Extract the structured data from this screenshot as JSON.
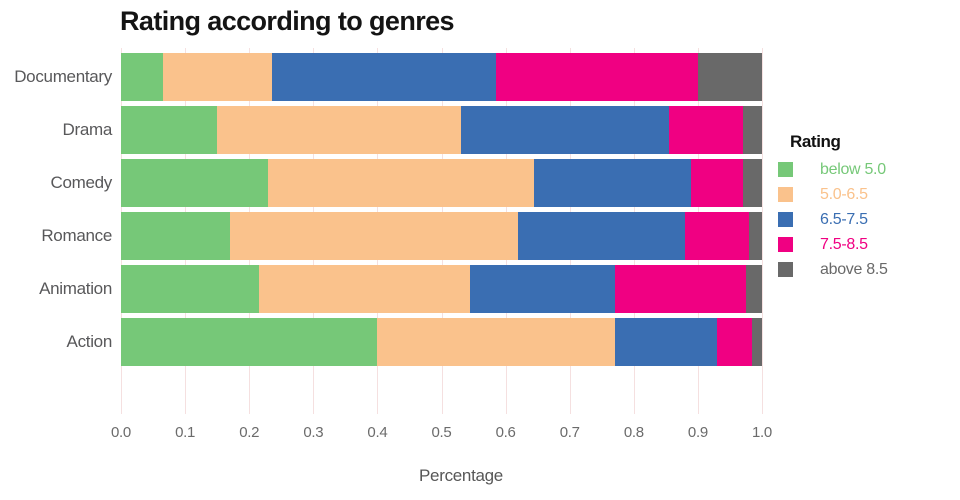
{
  "chart_data": {
    "type": "bar",
    "orientation": "horizontal-stacked",
    "title": "Rating according to genres",
    "xlabel": "Percentage",
    "ylabel": "",
    "xlim": [
      0.0,
      1.0
    ],
    "x_ticks": [
      "0.0",
      "0.1",
      "0.2",
      "0.3",
      "0.4",
      "0.5",
      "0.6",
      "0.7",
      "0.8",
      "0.9",
      "1.0"
    ],
    "grid": "vertical",
    "legend_title": "Rating",
    "legend_position": "right",
    "categories": [
      "Documentary",
      "Drama",
      "Comedy",
      "Romance",
      "Animation",
      "Action"
    ],
    "series": [
      {
        "name": "below 5.0",
        "color": "#76c878",
        "values": [
          0.065,
          0.15,
          0.23,
          0.17,
          0.215,
          0.4
        ]
      },
      {
        "name": "5.0-6.5",
        "color": "#fac28c",
        "values": [
          0.17,
          0.38,
          0.415,
          0.45,
          0.33,
          0.37
        ]
      },
      {
        "name": "6.5-7.5",
        "color": "#3a6eb2",
        "values": [
          0.35,
          0.325,
          0.245,
          0.26,
          0.225,
          0.16
        ]
      },
      {
        "name": "7.5-8.5",
        "color": "#f00082",
        "values": [
          0.315,
          0.115,
          0.08,
          0.1,
          0.205,
          0.055
        ]
      },
      {
        "name": "above 8.5",
        "color": "#696969",
        "values": [
          0.1,
          0.03,
          0.03,
          0.02,
          0.025,
          0.015
        ]
      }
    ]
  },
  "colors": {
    "background": "#ffffff",
    "gridline": "#f5e0e0",
    "title_text": "#141414",
    "category_label_text": "#58585a",
    "tick_label_text": "#6b6b6b",
    "axis_title_text": "#575757",
    "legend_title_text": "#111111"
  }
}
